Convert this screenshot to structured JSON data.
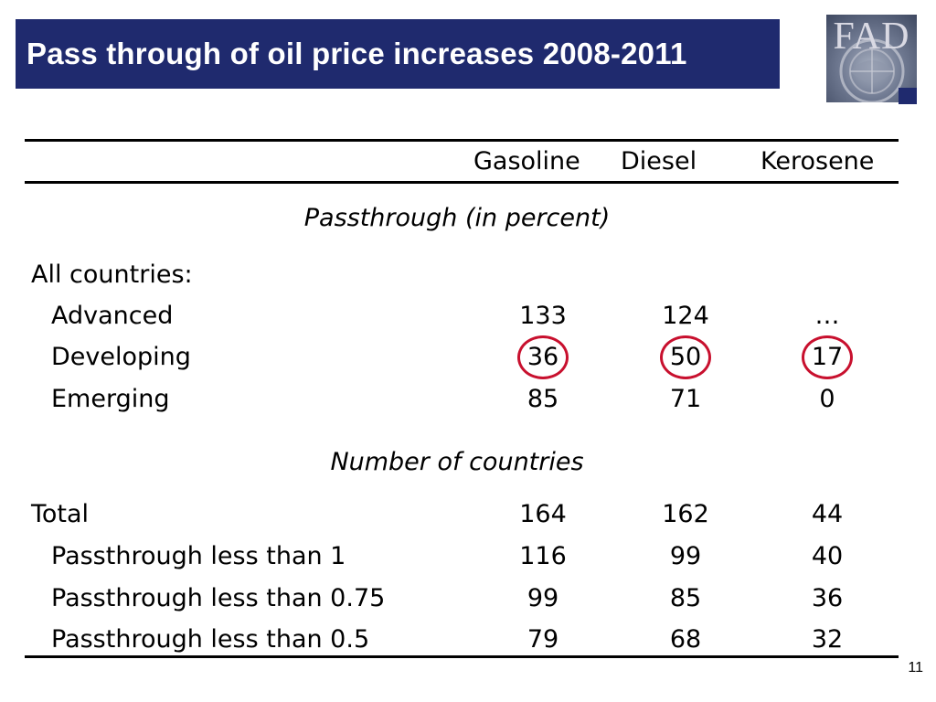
{
  "slide": {
    "title": "Pass through of oil price increases 2008-2011",
    "page_number": "11",
    "logo_text": "FAD",
    "colors": {
      "title_bar": "#1f2a6e",
      "title_text": "#ffffff",
      "highlight_circle": "#c8102e"
    }
  },
  "table": {
    "columns": [
      "Gasoline",
      "Diesel",
      "Kerosene"
    ],
    "section1": {
      "heading": "Passthrough (in percent)",
      "group_label": "All countries:",
      "rows": [
        {
          "label": "Advanced",
          "values": [
            "133",
            "124",
            "…"
          ]
        },
        {
          "label": "Developing",
          "values": [
            "36",
            "50",
            "17"
          ],
          "highlighted": true
        },
        {
          "label": "Emerging",
          "values": [
            "85",
            "71",
            "0"
          ]
        }
      ]
    },
    "section2": {
      "heading": "Number of countries",
      "rows": [
        {
          "label": "Total",
          "values": [
            "164",
            "162",
            "44"
          ]
        },
        {
          "label": "Passthrough less than 1",
          "values": [
            "116",
            "99",
            "40"
          ]
        },
        {
          "label": "Passthrough less than 0.75",
          "values": [
            "99",
            "85",
            "36"
          ]
        },
        {
          "label": "Passthrough less than 0.5",
          "values": [
            "79",
            "68",
            "32"
          ]
        }
      ]
    }
  }
}
